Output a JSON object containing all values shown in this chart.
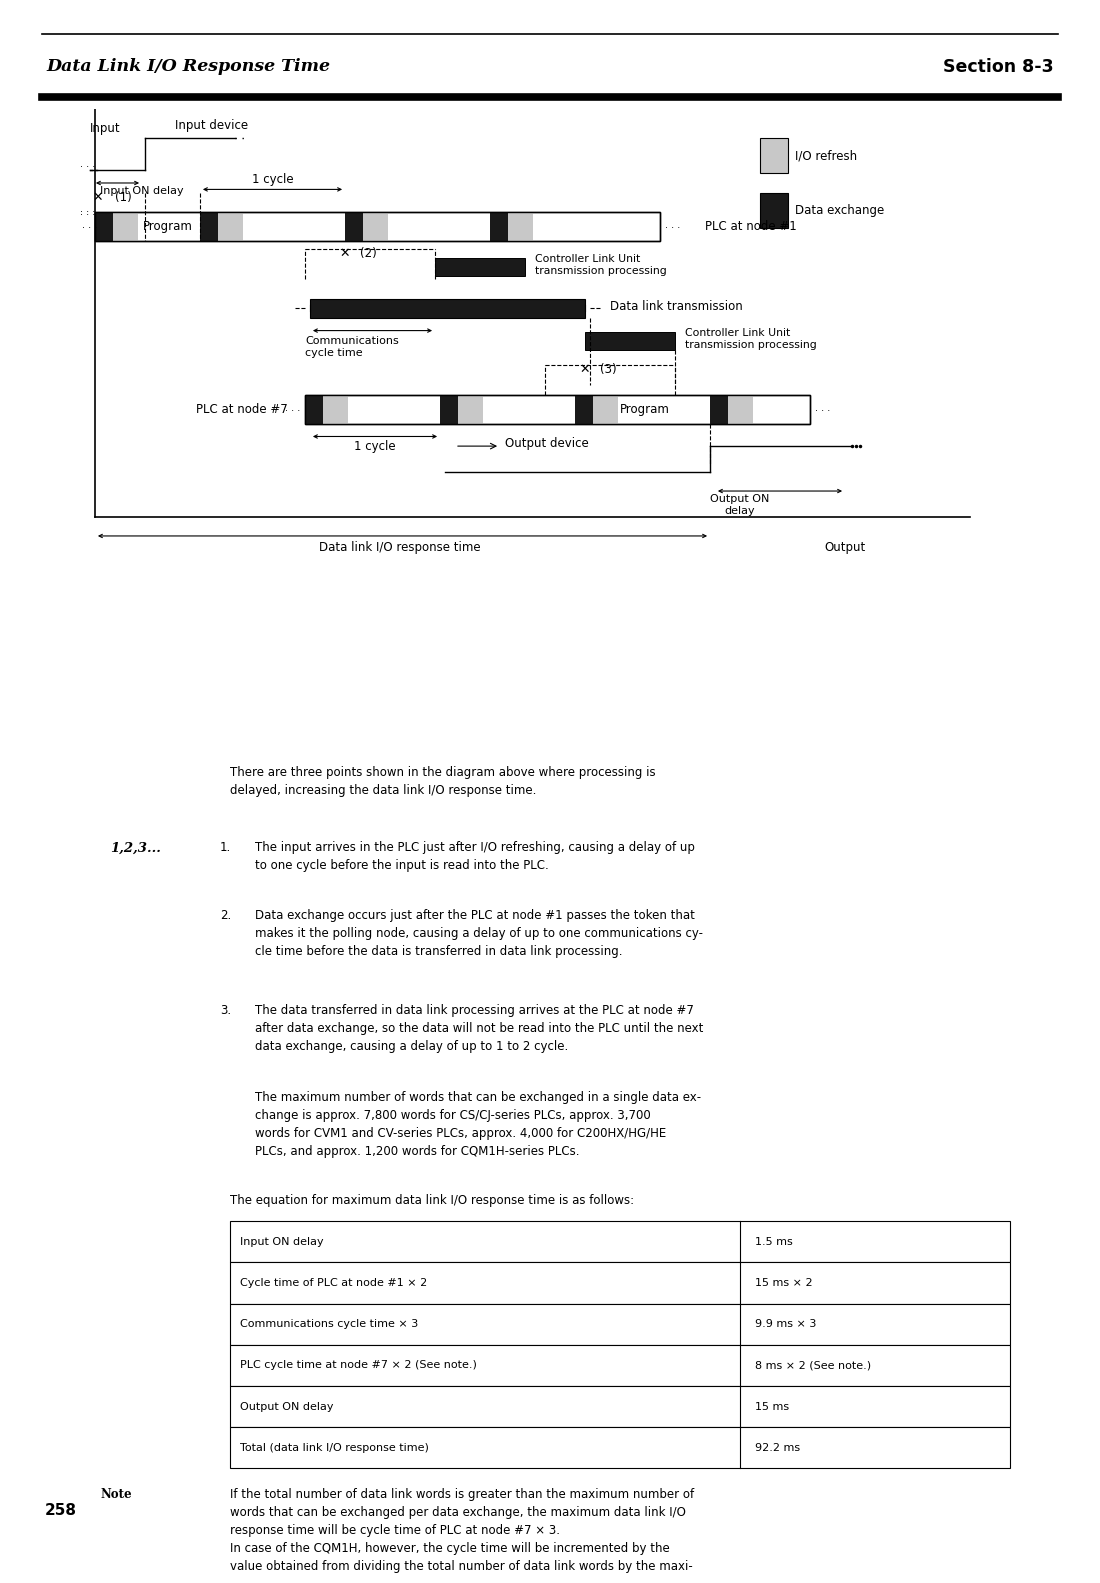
{
  "title_left": "Data Link I/O Response Time",
  "title_right": "Section 8-3",
  "legend_io_refresh": "I/O refresh",
  "legend_data_exchange": "Data exchange",
  "intro_text": "There are three points shown in the diagram above where processing is\ndelayed, increasing the data link I/O response time.",
  "numbered_label": "1,2,3...",
  "item1_num": "1.",
  "item1_text": "The input arrives in the PLC just after I/O refreshing, causing a delay of up\nto one cycle before the input is read into the PLC.",
  "item2_num": "2.",
  "item2_text": "Data exchange occurs just after the PLC at node #1 passes the token that\nmakes it the polling node, causing a delay of up to one communications cy-\ncle time before the data is transferred in data link processing.",
  "item3_num": "3.",
  "item3_text": "The data transferred in data link processing arrives at the PLC at node #7\nafter data exchange, so the data will not be read into the PLC until the next\ndata exchange, causing a delay of up to 1 to 2 cycle.",
  "item4_text": "The maximum number of words that can be exchanged in a single data ex-\nchange is approx. 7,800 words for CS/CJ-series PLCs, approx. 3,700\nwords for CVM1 and CV-series PLCs, approx. 4,000 for C200HX/HG/HE\nPLCs, and approx. 1,200 words for CQM1H-series PLCs.",
  "equation_text": "The equation for maximum data link I/O response time is as follows:",
  "table_rows": [
    [
      "Input ON delay",
      "1.5 ms"
    ],
    [
      "Cycle time of PLC at node #1 × 2",
      "15 ms × 2"
    ],
    [
      "Communications cycle time × 3",
      "9.9 ms × 3"
    ],
    [
      "PLC cycle time at node #7 × 2 (See note.)",
      "8 ms × 2 (See note.)"
    ],
    [
      "Output ON delay",
      "15 ms"
    ],
    [
      "Total (data link I/O response time)",
      "92.2 ms"
    ]
  ],
  "note_label": "Note",
  "note_text": "If the total number of data link words is greater than the maximum number of\nwords that can be exchanged per data exchange, the maximum data link I/O\nresponse time will be cycle time of PLC at node #7 × 3.\nIn case of the CQM1H, however, the cycle time will be incremented by the\nvalue obtained from dividing the total number of data link words by the maxi-",
  "page_number": "258",
  "bg_color": "#ffffff",
  "io_refresh_color": "#c8c8c8",
  "data_exchange_color": "#1a1a1a"
}
